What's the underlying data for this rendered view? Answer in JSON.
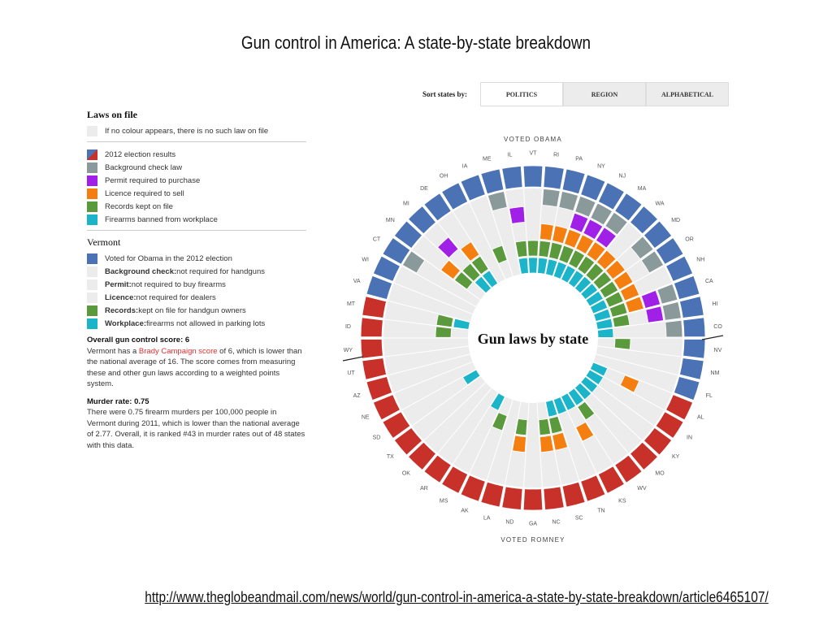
{
  "slide": {
    "title": "Gun control in America: A state-by-state breakdown",
    "source_url": "http://www.theglobeandmail.com/news/world/gun-control-in-america-a-state-by-state-breakdown/article6465107/"
  },
  "sort": {
    "label": "Sort states by:",
    "options": [
      {
        "label": "POLITICS",
        "active": true
      },
      {
        "label": "REGION",
        "active": false
      },
      {
        "label": "ALPHABETICAL",
        "active": false
      }
    ]
  },
  "legend": {
    "title": "Laws on file",
    "note": "If no colour appears, there is no such law on file",
    "items": [
      {
        "label": "2012 election results",
        "color": "split"
      },
      {
        "label": "Background check law",
        "color": "#8a9a9a"
      },
      {
        "label": "Permit required to purchase",
        "color": "#a020e8"
      },
      {
        "label": "Licence required to sell",
        "color": "#f47e10"
      },
      {
        "label": "Records kept on file",
        "color": "#5a9a3c"
      },
      {
        "label": "Firearms banned from workplace",
        "color": "#1cb4c8"
      }
    ]
  },
  "state_detail": {
    "name": "Vermont",
    "rows": [
      {
        "bold": "",
        "rest": "Voted for Obama in the 2012 election",
        "color": "#4a72b4"
      },
      {
        "bold": "Background check:",
        "rest": " not required for handguns",
        "color": "#ececec"
      },
      {
        "bold": "Permit:",
        "rest": " not required to buy firearms",
        "color": "#ececec"
      },
      {
        "bold": "Licence:",
        "rest": " not required for dealers",
        "color": "#ececec"
      },
      {
        "bold": "Records:",
        "rest": " kept on file for handgun owners",
        "color": "#5a9a3c"
      },
      {
        "bold": "Workplace:",
        "rest": " firearms not allowed in parking lots",
        "color": "#1cb4c8"
      }
    ],
    "score_label": "Overall gun control score:",
    "score_value": "6",
    "score_text_1": "Vermont has a ",
    "score_link": "Brady Campaign score",
    "score_text_2": " of 6, which is lower than the national average of 16. The score comes from measuring these and other gun laws according to a weighted points system.",
    "murder_label": "Murder rate:",
    "murder_value": "0.75",
    "murder_text": "There were 0.75 firearm murders per 100,000 people in Vermont during 2011, which is lower than the national average of 2.77. Overall, it is ranked #43 in murder rates out of 48 states with this data."
  },
  "wheel": {
    "center_label": "Gun laws by state",
    "top_label": "VOTED OBAMA",
    "bottom_label": "VOTED ROMNEY",
    "colors": {
      "obama": "#4a72b4",
      "romney": "#c8312a",
      "background": "#8a9a9a",
      "permit": "#a020e8",
      "licence": "#f47e10",
      "records": "#5a9a3c",
      "workplace": "#1cb4c8",
      "empty": "#ececec"
    },
    "states": [
      {
        "name": "VA",
        "party": "obama",
        "laws": ""
      },
      {
        "name": "WI",
        "party": "obama",
        "laws": ""
      },
      {
        "name": "CT",
        "party": "obama",
        "laws": "B"
      },
      {
        "name": "MN",
        "party": "obama",
        "laws": "LR"
      },
      {
        "name": "MI",
        "party": "obama",
        "laws": "PRW"
      },
      {
        "name": "DE",
        "party": "obama",
        "laws": "LRW"
      },
      {
        "name": "OH",
        "party": "obama",
        "laws": ""
      },
      {
        "name": "IA",
        "party": "obama",
        "laws": "R"
      },
      {
        "name": "ME",
        "party": "obama",
        "laws": "B"
      },
      {
        "name": "IL",
        "party": "obama",
        "laws": "PRW"
      },
      {
        "name": "VT",
        "party": "obama",
        "laws": "RW"
      },
      {
        "name": "RI",
        "party": "obama",
        "laws": "BLRW"
      },
      {
        "name": "PA",
        "party": "obama",
        "laws": "BLRW"
      },
      {
        "name": "NY",
        "party": "obama",
        "laws": "BPLRW"
      },
      {
        "name": "NJ",
        "party": "obama",
        "laws": "BPLRW"
      },
      {
        "name": "MA",
        "party": "obama",
        "laws": "BPLRW"
      },
      {
        "name": "WA",
        "party": "obama",
        "laws": "LRW"
      },
      {
        "name": "MD",
        "party": "obama",
        "laws": "BLRW"
      },
      {
        "name": "OR",
        "party": "obama",
        "laws": "BLRW"
      },
      {
        "name": "NH",
        "party": "obama",
        "laws": "LRW"
      },
      {
        "name": "CA",
        "party": "obama",
        "laws": "BPLRW"
      },
      {
        "name": "HI",
        "party": "obama",
        "laws": "BPRW"
      },
      {
        "name": "CO",
        "party": "obama",
        "laws": "BW"
      },
      {
        "name": "NV",
        "party": "obama",
        "laws": "R"
      },
      {
        "name": "NM",
        "party": "obama",
        "laws": ""
      },
      {
        "name": "FL",
        "party": "obama",
        "laws": ""
      },
      {
        "name": "AL",
        "party": "romney",
        "laws": "LW"
      },
      {
        "name": "IN",
        "party": "romney",
        "laws": "W"
      },
      {
        "name": "KY",
        "party": "romney",
        "laws": "W"
      },
      {
        "name": "MO",
        "party": "romney",
        "laws": "W"
      },
      {
        "name": "WV",
        "party": "romney",
        "laws": "RW"
      },
      {
        "name": "KS",
        "party": "romney",
        "laws": "LW"
      },
      {
        "name": "TN",
        "party": "romney",
        "laws": "W"
      },
      {
        "name": "SC",
        "party": "romney",
        "laws": "LRW"
      },
      {
        "name": "NC",
        "party": "romney",
        "laws": "LR"
      },
      {
        "name": "GA",
        "party": "romney",
        "laws": ""
      },
      {
        "name": "ND",
        "party": "romney",
        "laws": "LR"
      },
      {
        "name": "LA",
        "party": "romney",
        "laws": ""
      },
      {
        "name": "AK",
        "party": "romney",
        "laws": "R"
      },
      {
        "name": "MS",
        "party": "romney",
        "laws": "W"
      },
      {
        "name": "AR",
        "party": "romney",
        "laws": ""
      },
      {
        "name": "OK",
        "party": "romney",
        "laws": ""
      },
      {
        "name": "TX",
        "party": "romney",
        "laws": ""
      },
      {
        "name": "SD",
        "party": "romney",
        "laws": "W"
      },
      {
        "name": "NE",
        "party": "romney",
        "laws": ""
      },
      {
        "name": "AZ",
        "party": "romney",
        "laws": ""
      },
      {
        "name": "UT",
        "party": "romney",
        "laws": ""
      },
      {
        "name": "WY",
        "party": "romney",
        "laws": ""
      },
      {
        "name": "ID",
        "party": "romney",
        "laws": "R"
      },
      {
        "name": "MT",
        "party": "romney",
        "laws": "RW"
      }
    ]
  }
}
